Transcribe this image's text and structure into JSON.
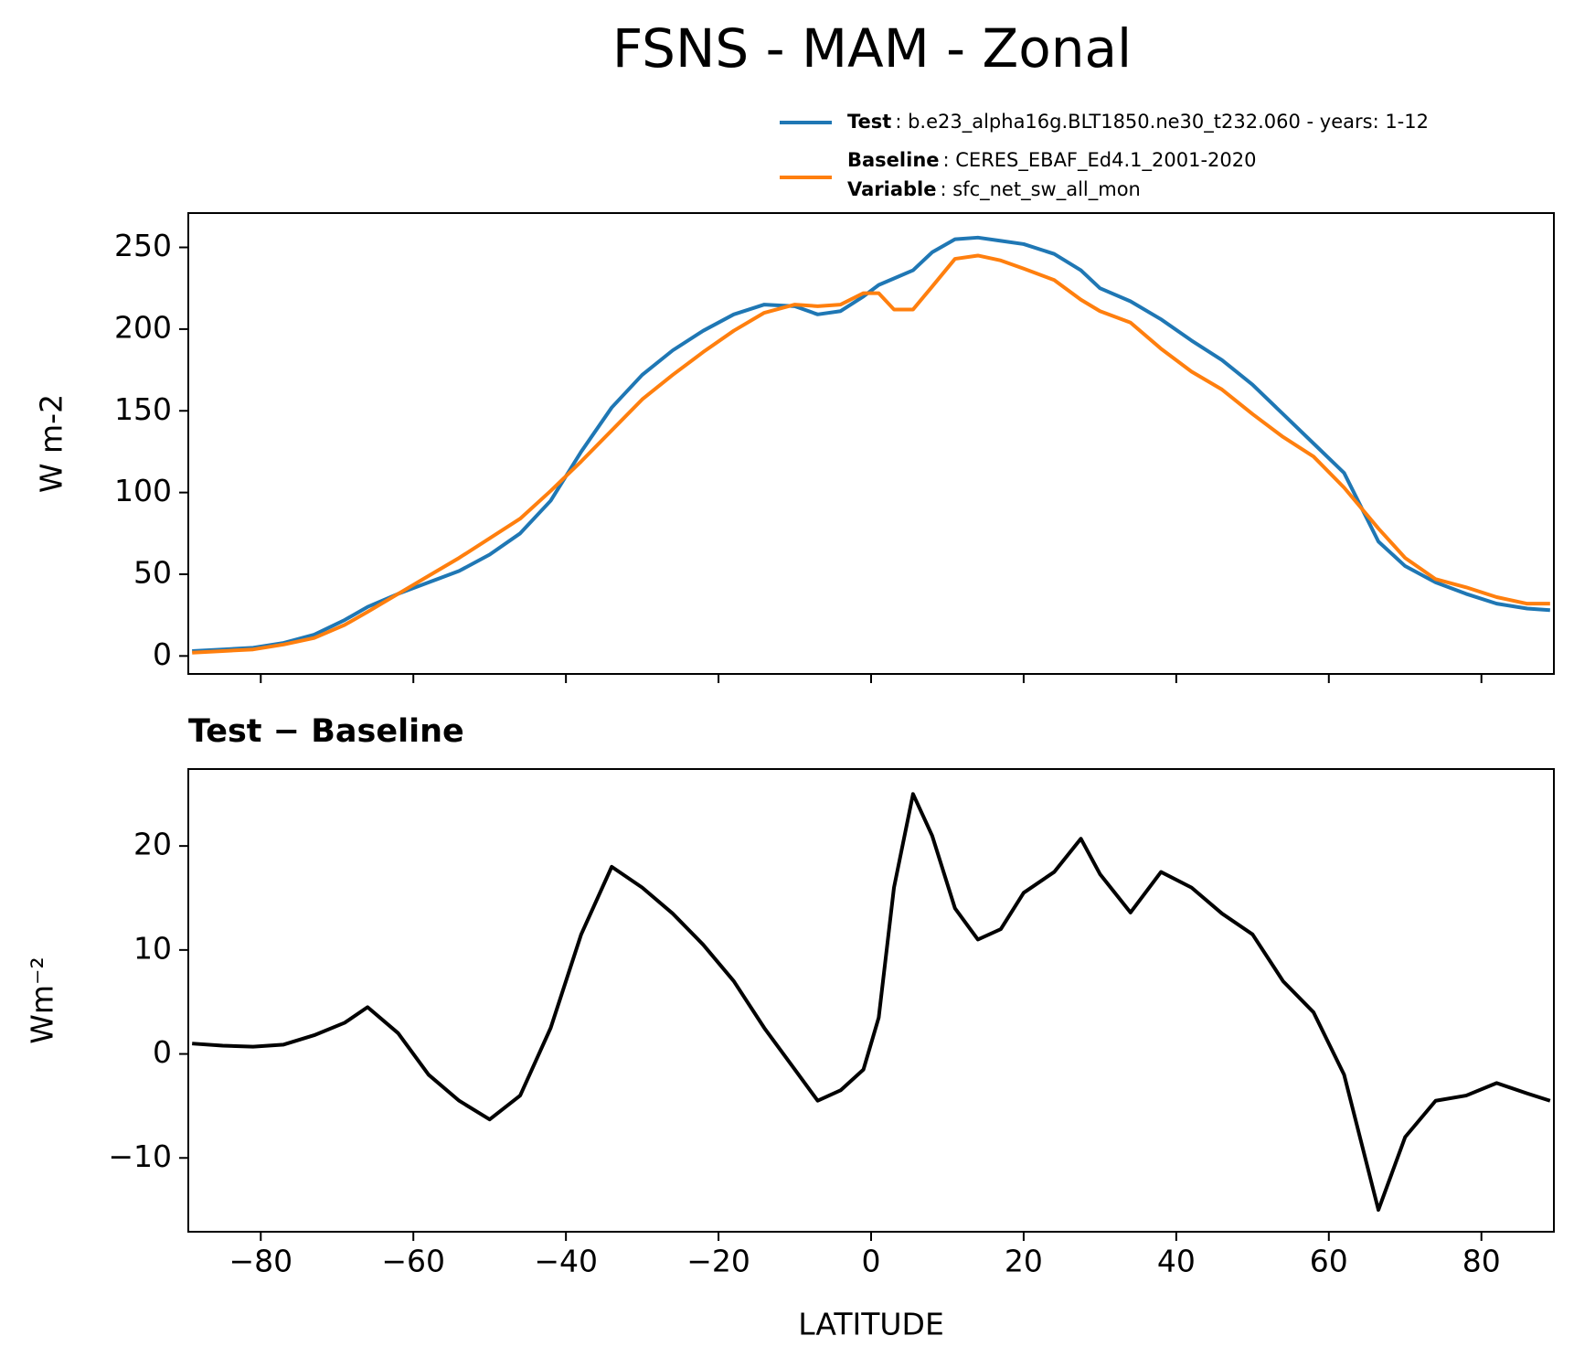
{
  "chart_data": [
    {
      "type": "line",
      "title": "FSNS - MAM - Zonal",
      "ylabel": "W m-2",
      "x": [
        -89,
        -85,
        -81,
        -77,
        -73,
        -69,
        -66,
        -62,
        -58,
        -54,
        -50,
        -46,
        -42,
        -38,
        -34,
        -30,
        -26,
        -22,
        -18,
        -14,
        -10,
        -7,
        -4,
        -1,
        1,
        3,
        5.5,
        8,
        11,
        14,
        17,
        20,
        24,
        27.5,
        30,
        34,
        38,
        42,
        46,
        50,
        54,
        58,
        62,
        66.5,
        70,
        74,
        78,
        82,
        86,
        89
      ],
      "series": [
        {
          "name": "Test",
          "label": ": b.e23_alpha16g.BLT1850.ne30_t232.060 - years: 1-12",
          "color": "#1f77b4",
          "values": [
            3,
            4,
            5,
            8,
            13,
            22,
            30,
            38,
            45,
            52,
            62,
            75,
            95,
            125,
            152,
            172,
            187,
            199,
            209,
            215,
            214,
            209,
            211,
            220,
            227,
            231,
            236,
            247,
            255,
            256,
            254,
            252,
            246,
            236,
            225,
            217,
            206,
            193,
            181,
            166,
            148,
            130,
            112,
            70,
            55,
            45,
            38,
            32,
            29,
            28
          ]
        },
        {
          "name": "Baseline",
          "label": ": CERES_EBAF_Ed4.1_2001-2020",
          "color": "#ff7f0e",
          "values": [
            2,
            3,
            4,
            7,
            11,
            19,
            27,
            38,
            49,
            60,
            72,
            84,
            101,
            119,
            138,
            157,
            172,
            186,
            199,
            210,
            215,
            214,
            215,
            222,
            222,
            212,
            212,
            226,
            243,
            245,
            242,
            237,
            230,
            218,
            211,
            204,
            188,
            174,
            163,
            148,
            134,
            122,
            103,
            78,
            60,
            47,
            42,
            36,
            32,
            32
          ]
        }
      ],
      "variable_name": "Variable",
      "variable_label": ": sfc_net_sw_all_mon",
      "xlim": [
        -89.5,
        89.5
      ],
      "xticks": [
        -80,
        -60,
        -40,
        -20,
        0,
        20,
        40,
        60,
        80
      ],
      "show_xtick_labels": false,
      "ylim": [
        -11,
        271
      ],
      "yticks": [
        0,
        50,
        100,
        150,
        200,
        250
      ]
    },
    {
      "type": "line",
      "title": "Test − Baseline",
      "ylabel": "Wm⁻²",
      "xlabel": "LATITUDE",
      "x": [
        -89,
        -85,
        -81,
        -77,
        -73,
        -69,
        -66,
        -62,
        -58,
        -54,
        -50,
        -46,
        -42,
        -38,
        -34,
        -30,
        -26,
        -22,
        -18,
        -14,
        -10,
        -7,
        -4,
        -1,
        1,
        3,
        5.5,
        8,
        11,
        14,
        17,
        20,
        24,
        27.5,
        30,
        34,
        38,
        42,
        46,
        50,
        54,
        58,
        62,
        66.5,
        70,
        74,
        78,
        82,
        86,
        89
      ],
      "series": [
        {
          "color": "#000000",
          "values": [
            1,
            0.8,
            0.7,
            0.9,
            1.8,
            3,
            4.5,
            2,
            -2,
            -4.5,
            -6.3,
            -4,
            2.5,
            11.5,
            18,
            16,
            13.5,
            10.5,
            7,
            2.5,
            -1.5,
            -4.5,
            -3.5,
            -1.5,
            3.5,
            16,
            25,
            21,
            14,
            11,
            12,
            15.5,
            17.5,
            20.7,
            17.3,
            13.6,
            17.5,
            16,
            13.5,
            11.5,
            7,
            4,
            -2,
            -15,
            -8,
            -4.5,
            -4,
            -2.8,
            -3.8,
            -4.5
          ]
        }
      ],
      "xlim": [
        -89.5,
        89.5
      ],
      "xticks": [
        {
          "value": -80,
          "label": "−80"
        },
        {
          "value": -60,
          "label": "−60"
        },
        {
          "value": -40,
          "label": "−40"
        },
        {
          "value": -20,
          "label": "−20"
        },
        0,
        20,
        40,
        60,
        80
      ],
      "show_xtick_labels": true,
      "ylim": [
        -17.1,
        27.4
      ],
      "yticks": [
        {
          "value": -10,
          "label": "−10"
        },
        0,
        10,
        20
      ]
    }
  ]
}
